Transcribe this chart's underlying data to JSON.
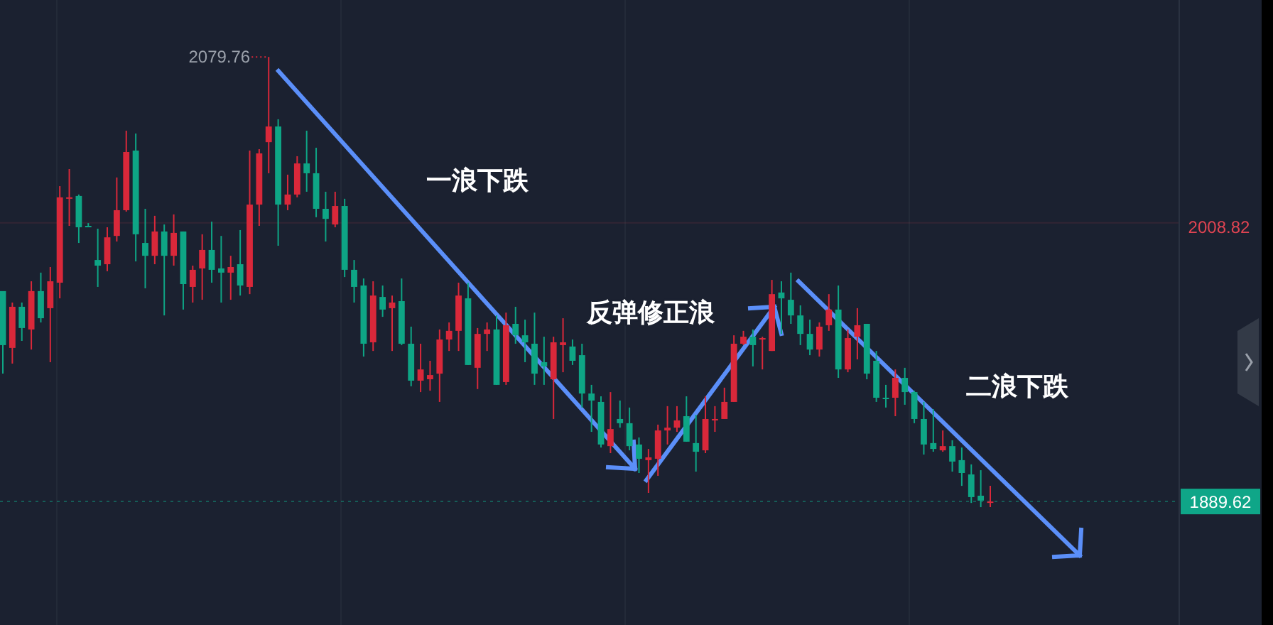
{
  "chart_data": {
    "type": "candlestick",
    "categories": [
      null,
      null,
      null,
      null,
      null,
      null,
      null,
      null,
      null,
      null,
      null,
      null,
      null,
      null,
      null,
      null,
      null,
      null,
      null,
      null,
      null,
      null,
      null,
      null,
      null,
      null,
      null,
      null,
      null,
      null,
      null,
      null,
      null,
      null,
      null,
      null,
      null,
      null,
      null,
      null,
      null,
      null,
      null,
      null,
      null,
      null,
      null,
      null,
      null,
      null,
      null,
      null,
      null,
      null,
      null,
      null,
      null,
      null,
      null,
      null,
      null,
      null,
      null,
      null,
      null,
      null,
      null,
      null,
      null,
      null,
      null,
      null,
      null,
      null,
      null,
      null,
      null,
      null,
      null,
      null,
      null,
      null,
      null,
      null,
      null,
      null,
      null,
      null,
      null,
      null,
      null,
      null,
      null,
      null,
      null,
      null,
      null,
      null,
      null,
      null,
      null,
      null,
      null,
      null,
      null
    ],
    "ohlc": [
      [
        1979.6,
        1979.6,
        1944.3,
        1956.5
      ],
      [
        1955.3,
        1974.7,
        1948.6,
        1972.9
      ],
      [
        1972.9,
        1974.7,
        1958.3,
        1963.8
      ],
      [
        1963.2,
        1983.8,
        1954.6,
        1979.6
      ],
      [
        1979.6,
        1987.5,
        1966.2,
        1968.0
      ],
      [
        1972.3,
        1989.9,
        1949.2,
        1983.8
      ],
      [
        1983.2,
        2024.5,
        1976.5,
        2019.7
      ],
      [
        2019.1,
        2031.8,
        2007.5,
        2019.7
      ],
      [
        2020.3,
        2020.9,
        2000.2,
        2006.9
      ],
      [
        2007.5,
        2008.7,
        2006.9,
        2006.9
      ],
      [
        1992.9,
        2006.3,
        1981.4,
        1990.5
      ],
      [
        1991.1,
        2006.9,
        1988.1,
        2002.6
      ],
      [
        2003.2,
        2028.2,
        2000.8,
        2014.2
      ],
      [
        2014.2,
        2048.2,
        2013.6,
        2039.1
      ],
      [
        2039.7,
        2047.0,
        1992.3,
        2003.9
      ],
      [
        2000.2,
        2014.8,
        1980.8,
        1994.7
      ],
      [
        1994.7,
        2011.8,
        1991.1,
        2005.1
      ],
      [
        2005.1,
        2008.1,
        1969.2,
        1994.7
      ],
      [
        1994.7,
        2012.4,
        1990.5,
        2004.5
      ],
      [
        2005.1,
        2005.1,
        1971.7,
        1982.6
      ],
      [
        1981.4,
        1990.5,
        1974.7,
        1988.7
      ],
      [
        1989.3,
        2003.9,
        1975.9,
        1997.2
      ],
      [
        1997.2,
        2009.3,
        1983.2,
        1988.7
      ],
      [
        1989.3,
        2003.2,
        1974.7,
        1987.5
      ],
      [
        1987.5,
        1994.7,
        1975.9,
        1989.9
      ],
      [
        1991.1,
        2005.7,
        1977.7,
        1982.0
      ],
      [
        1981.4,
        2039.7,
        1978.3,
        2016.6
      ],
      [
        2016.6,
        2040.3,
        2007.5,
        2038.5
      ],
      [
        2043.3,
        2079.76,
        2030.0,
        2050.0
      ],
      [
        2050.0,
        2053.1,
        1999.0,
        2016.6
      ],
      [
        2016.6,
        2029.4,
        2014.2,
        2020.9
      ],
      [
        2020.9,
        2037.3,
        2019.7,
        2034.2
      ],
      [
        2034.2,
        2048.2,
        2022.1,
        2030.0
      ],
      [
        2030.0,
        2040.9,
        2011.2,
        2014.8
      ],
      [
        2014.8,
        2022.1,
        2000.8,
        2010.5
      ],
      [
        2008.1,
        2022.1,
        2006.9,
        2016.0
      ],
      [
        2016.0,
        2019.1,
        1985.6,
        1988.7
      ],
      [
        1988.7,
        1992.9,
        1974.7,
        1981.4
      ],
      [
        1982.0,
        1985.0,
        1951.6,
        1957.1
      ],
      [
        1957.7,
        1983.8,
        1954.0,
        1977.7
      ],
      [
        1977.1,
        1982.0,
        1968.6,
        1971.7
      ],
      [
        1972.3,
        1977.7,
        1954.0,
        1974.7
      ],
      [
        1975.3,
        1985.0,
        1956.5,
        1957.1
      ],
      [
        1957.1,
        1964.4,
        1938.9,
        1941.3
      ],
      [
        1941.3,
        1957.1,
        1936.4,
        1946.1
      ],
      [
        1941.9,
        1949.8,
        1937.0,
        1943.7
      ],
      [
        1944.3,
        1963.2,
        1932.2,
        1958.9
      ],
      [
        1958.9,
        1966.2,
        1954.0,
        1962.6
      ],
      [
        1962.6,
        1983.2,
        1954.0,
        1977.7
      ],
      [
        1976.5,
        1983.2,
        1948.0,
        1948.0
      ],
      [
        1946.8,
        1963.8,
        1937.7,
        1961.3
      ],
      [
        1961.3,
        1966.2,
        1954.0,
        1963.2
      ],
      [
        1963.2,
        1969.2,
        1939.5,
        1939.5
      ],
      [
        1940.7,
        1970.4,
        1939.5,
        1965.0
      ],
      [
        1965.6,
        1972.9,
        1957.1,
        1960.7
      ],
      [
        1960.7,
        1967.4,
        1949.2,
        1957.7
      ],
      [
        1957.1,
        1970.4,
        1939.5,
        1944.3
      ],
      [
        1949.2,
        1960.1,
        1939.5,
        1947.4
      ],
      [
        1941.9,
        1960.1,
        1924.9,
        1957.7
      ],
      [
        1956.5,
        1968.0,
        1944.9,
        1957.7
      ],
      [
        1955.9,
        1958.9,
        1948.0,
        1949.8
      ],
      [
        1952.2,
        1957.1,
        1929.8,
        1935.8
      ],
      [
        1935.8,
        1939.5,
        1919.4,
        1932.8
      ],
      [
        1932.2,
        1934.6,
        1912.7,
        1914.0
      ],
      [
        1913.3,
        1936.4,
        1910.3,
        1920.6
      ],
      [
        1924.9,
        1932.8,
        1921.2,
        1923.1
      ],
      [
        1923.1,
        1929.8,
        1911.5,
        1913.3
      ],
      [
        1914.0,
        1917.0,
        1901.8,
        1907.9
      ],
      [
        1907.3,
        1912.1,
        1893.3,
        1908.5
      ],
      [
        1907.9,
        1922.5,
        1900.6,
        1920.0
      ],
      [
        1920.0,
        1930.4,
        1914.0,
        1921.2
      ],
      [
        1921.2,
        1930.4,
        1919.4,
        1924.3
      ],
      [
        1926.1,
        1934.6,
        1915.2,
        1915.2
      ],
      [
        1914.6,
        1926.7,
        1902.4,
        1910.9
      ],
      [
        1911.5,
        1934.6,
        1910.3,
        1924.9
      ],
      [
        1924.3,
        1930.4,
        1919.4,
        1924.9
      ],
      [
        1924.9,
        1938.3,
        1924.9,
        1932.2
      ],
      [
        1932.2,
        1960.7,
        1932.2,
        1957.1
      ],
      [
        1957.1,
        1962.6,
        1956.5,
        1960.1
      ],
      [
        1960.1,
        1963.2,
        1947.4,
        1956.5
      ],
      [
        1958.9,
        1960.1,
        1946.1,
        1959.5
      ],
      [
        1954.0,
        1984.4,
        1954.0,
        1978.3
      ],
      [
        1979.0,
        1983.8,
        1961.3,
        1976.5
      ],
      [
        1975.9,
        1987.5,
        1965.6,
        1969.2
      ],
      [
        1969.2,
        1973.5,
        1956.5,
        1961.3
      ],
      [
        1961.3,
        1967.4,
        1952.2,
        1954.6
      ],
      [
        1954.6,
        1966.2,
        1951.6,
        1964.4
      ],
      [
        1965.0,
        1978.3,
        1962.6,
        1971.7
      ],
      [
        1971.7,
        1982.0,
        1942.5,
        1946.1
      ],
      [
        1946.1,
        1963.2,
        1944.9,
        1959.5
      ],
      [
        1960.1,
        1972.3,
        1950.4,
        1965.0
      ],
      [
        1965.6,
        1965.6,
        1941.9,
        1944.3
      ],
      [
        1949.8,
        1954.0,
        1932.2,
        1934.0
      ],
      [
        1934.0,
        1939.5,
        1929.8,
        1933.4
      ],
      [
        1934.0,
        1946.1,
        1926.1,
        1942.5
      ],
      [
        1942.5,
        1946.8,
        1931.0,
        1936.4
      ],
      [
        1936.4,
        1937.0,
        1923.1,
        1924.9
      ],
      [
        1924.9,
        1932.2,
        1909.7,
        1914.0
      ],
      [
        1914.6,
        1929.1,
        1910.9,
        1912.1
      ],
      [
        1911.5,
        1920.0,
        1910.9,
        1913.3
      ],
      [
        1913.3,
        1915.8,
        1902.4,
        1906.7
      ],
      [
        1907.3,
        1912.7,
        1896.3,
        1901.8
      ],
      [
        1901.2,
        1905.5,
        1889.0,
        1891.5
      ],
      [
        1892.1,
        1903.0,
        1887.2,
        1890.0
      ],
      [
        1889.6,
        1896.3,
        1887.2,
        1889.62
      ]
    ],
    "ylim": [
      1836.8,
      2104.1
    ],
    "annotations": [
      "2079.76",
      "一浪下跌",
      "反弹修正浪",
      "二浪下跌"
    ],
    "ref_lines": [
      {
        "axis": "y",
        "value": 2008.82,
        "label": "2008.82",
        "color": "#e04452"
      },
      {
        "axis": "y",
        "value": 1889.62,
        "label": "1889.62",
        "color": "#0fa688",
        "line_style": "dotted"
      }
    ],
    "grid": "x"
  }
}
